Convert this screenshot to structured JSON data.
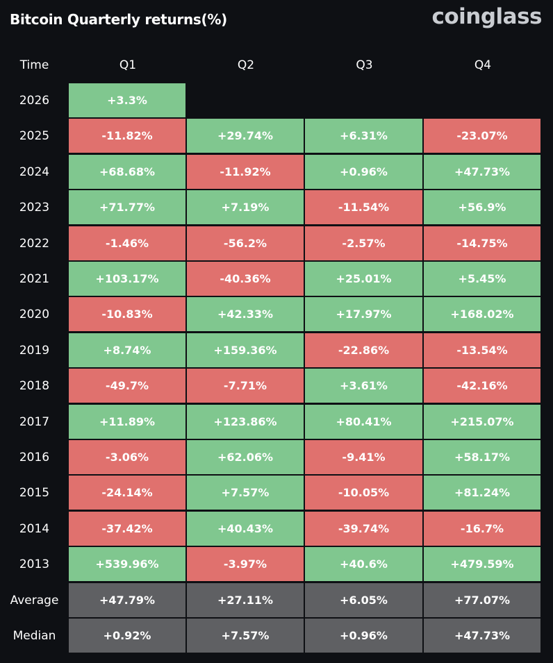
{
  "title": "Bitcoin Quarterly returns(%)",
  "logo": "coinglass",
  "colors": {
    "positive": "#80c78f",
    "negative": "#e0716e",
    "summary": "#5f6063",
    "background": "#0e1014"
  },
  "chart_data": {
    "type": "table",
    "title": "Bitcoin Quarterly returns(%)",
    "columns": [
      "Time",
      "Q1",
      "Q2",
      "Q3",
      "Q4"
    ],
    "rows": [
      {
        "label": "2026",
        "kind": "year",
        "values": [
          "+3.3%",
          null,
          null,
          null
        ]
      },
      {
        "label": "2025",
        "kind": "year",
        "values": [
          "-11.82%",
          "+29.74%",
          "+6.31%",
          "-23.07%"
        ]
      },
      {
        "label": "2024",
        "kind": "year",
        "values": [
          "+68.68%",
          "-11.92%",
          "+0.96%",
          "+47.73%"
        ]
      },
      {
        "label": "2023",
        "kind": "year",
        "values": [
          "+71.77%",
          "+7.19%",
          "-11.54%",
          "+56.9%"
        ]
      },
      {
        "label": "2022",
        "kind": "year",
        "values": [
          "-1.46%",
          "-56.2%",
          "-2.57%",
          "-14.75%"
        ]
      },
      {
        "label": "2021",
        "kind": "year",
        "values": [
          "+103.17%",
          "-40.36%",
          "+25.01%",
          "+5.45%"
        ]
      },
      {
        "label": "2020",
        "kind": "year",
        "values": [
          "-10.83%",
          "+42.33%",
          "+17.97%",
          "+168.02%"
        ]
      },
      {
        "label": "2019",
        "kind": "year",
        "values": [
          "+8.74%",
          "+159.36%",
          "-22.86%",
          "-13.54%"
        ]
      },
      {
        "label": "2018",
        "kind": "year",
        "values": [
          "-49.7%",
          "-7.71%",
          "+3.61%",
          "-42.16%"
        ]
      },
      {
        "label": "2017",
        "kind": "year",
        "values": [
          "+11.89%",
          "+123.86%",
          "+80.41%",
          "+215.07%"
        ]
      },
      {
        "label": "2016",
        "kind": "year",
        "values": [
          "-3.06%",
          "+62.06%",
          "-9.41%",
          "+58.17%"
        ]
      },
      {
        "label": "2015",
        "kind": "year",
        "values": [
          "-24.14%",
          "+7.57%",
          "-10.05%",
          "+81.24%"
        ]
      },
      {
        "label": "2014",
        "kind": "year",
        "values": [
          "-37.42%",
          "+40.43%",
          "-39.74%",
          "-16.7%"
        ]
      },
      {
        "label": "2013",
        "kind": "year",
        "values": [
          "+539.96%",
          "-3.97%",
          "+40.6%",
          "+479.59%"
        ]
      },
      {
        "label": "Average",
        "kind": "summary",
        "values": [
          "+47.79%",
          "+27.11%",
          "+6.05%",
          "+77.07%"
        ]
      },
      {
        "label": "Median",
        "kind": "summary",
        "values": [
          "+0.92%",
          "+7.57%",
          "+0.96%",
          "+47.73%"
        ]
      }
    ]
  }
}
